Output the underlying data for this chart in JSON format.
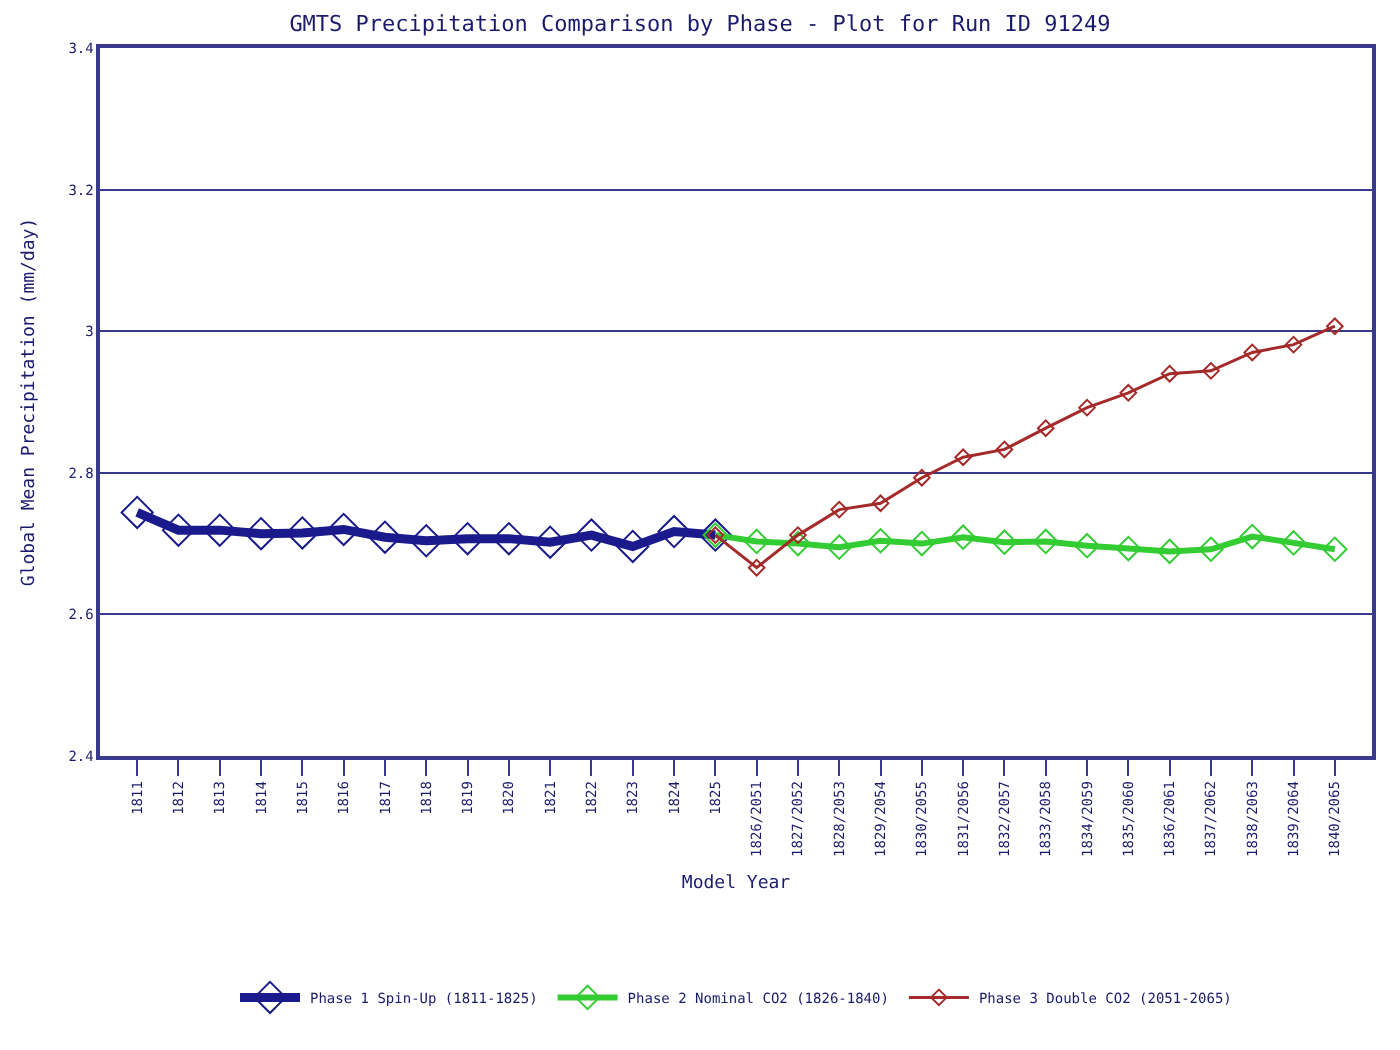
{
  "chart_data": {
    "type": "line",
    "title": "GMTS Precipitation Comparison by Phase - Plot for Run ID 91249",
    "xlabel": "Model Year",
    "ylabel": "Global Mean Precipitation (mm/day)",
    "categories": [
      "1811",
      "1812",
      "1813",
      "1814",
      "1815",
      "1816",
      "1817",
      "1818",
      "1819",
      "1820",
      "1821",
      "1822",
      "1823",
      "1824",
      "1825",
      "1826/2051",
      "1827/2052",
      "1828/2053",
      "1829/2054",
      "1830/2055",
      "1831/2056",
      "1832/2057",
      "1833/2058",
      "1834/2059",
      "1835/2060",
      "1836/2061",
      "1837/2062",
      "1838/2063",
      "1839/2064",
      "1840/2065"
    ],
    "series": [
      {
        "name": "Phase 1 Spin-Up (1811-1825)",
        "color": "#1a1a8c",
        "values": [
          2.744,
          2.719,
          2.719,
          2.714,
          2.715,
          2.72,
          2.709,
          2.704,
          2.707,
          2.707,
          2.702,
          2.712,
          2.696,
          2.717,
          2.712,
          null,
          null,
          null,
          null,
          null,
          null,
          null,
          null,
          null,
          null,
          null,
          null,
          null,
          null,
          null
        ]
      },
      {
        "name": "Phase 2 Nominal CO2 (1826-1840)",
        "color": "#33cc33",
        "values": [
          null,
          null,
          null,
          null,
          null,
          null,
          null,
          null,
          null,
          null,
          null,
          null,
          null,
          null,
          2.712,
          2.703,
          2.7,
          2.695,
          2.704,
          2.7,
          2.709,
          2.702,
          2.703,
          2.697,
          2.693,
          2.689,
          2.692,
          2.71,
          2.701,
          2.692
        ]
      },
      {
        "name": "Phase 3 Double CO2 (2051-2065)",
        "color": "#a52a2a",
        "values": [
          null,
          null,
          null,
          null,
          null,
          null,
          null,
          null,
          null,
          null,
          null,
          null,
          null,
          null,
          2.712,
          2.666,
          2.712,
          2.748,
          2.757,
          2.793,
          2.822,
          2.833,
          2.863,
          2.892,
          2.913,
          2.94,
          2.944,
          2.97,
          2.981,
          3.007
        ]
      }
    ],
    "ylim": [
      2.4,
      3.4
    ],
    "yticks": [
      2.4,
      2.6,
      2.8,
      3,
      3.2,
      3.4
    ],
    "grid": "y",
    "legend": "bottom",
    "marker": "diamond",
    "line_style": "solid"
  }
}
